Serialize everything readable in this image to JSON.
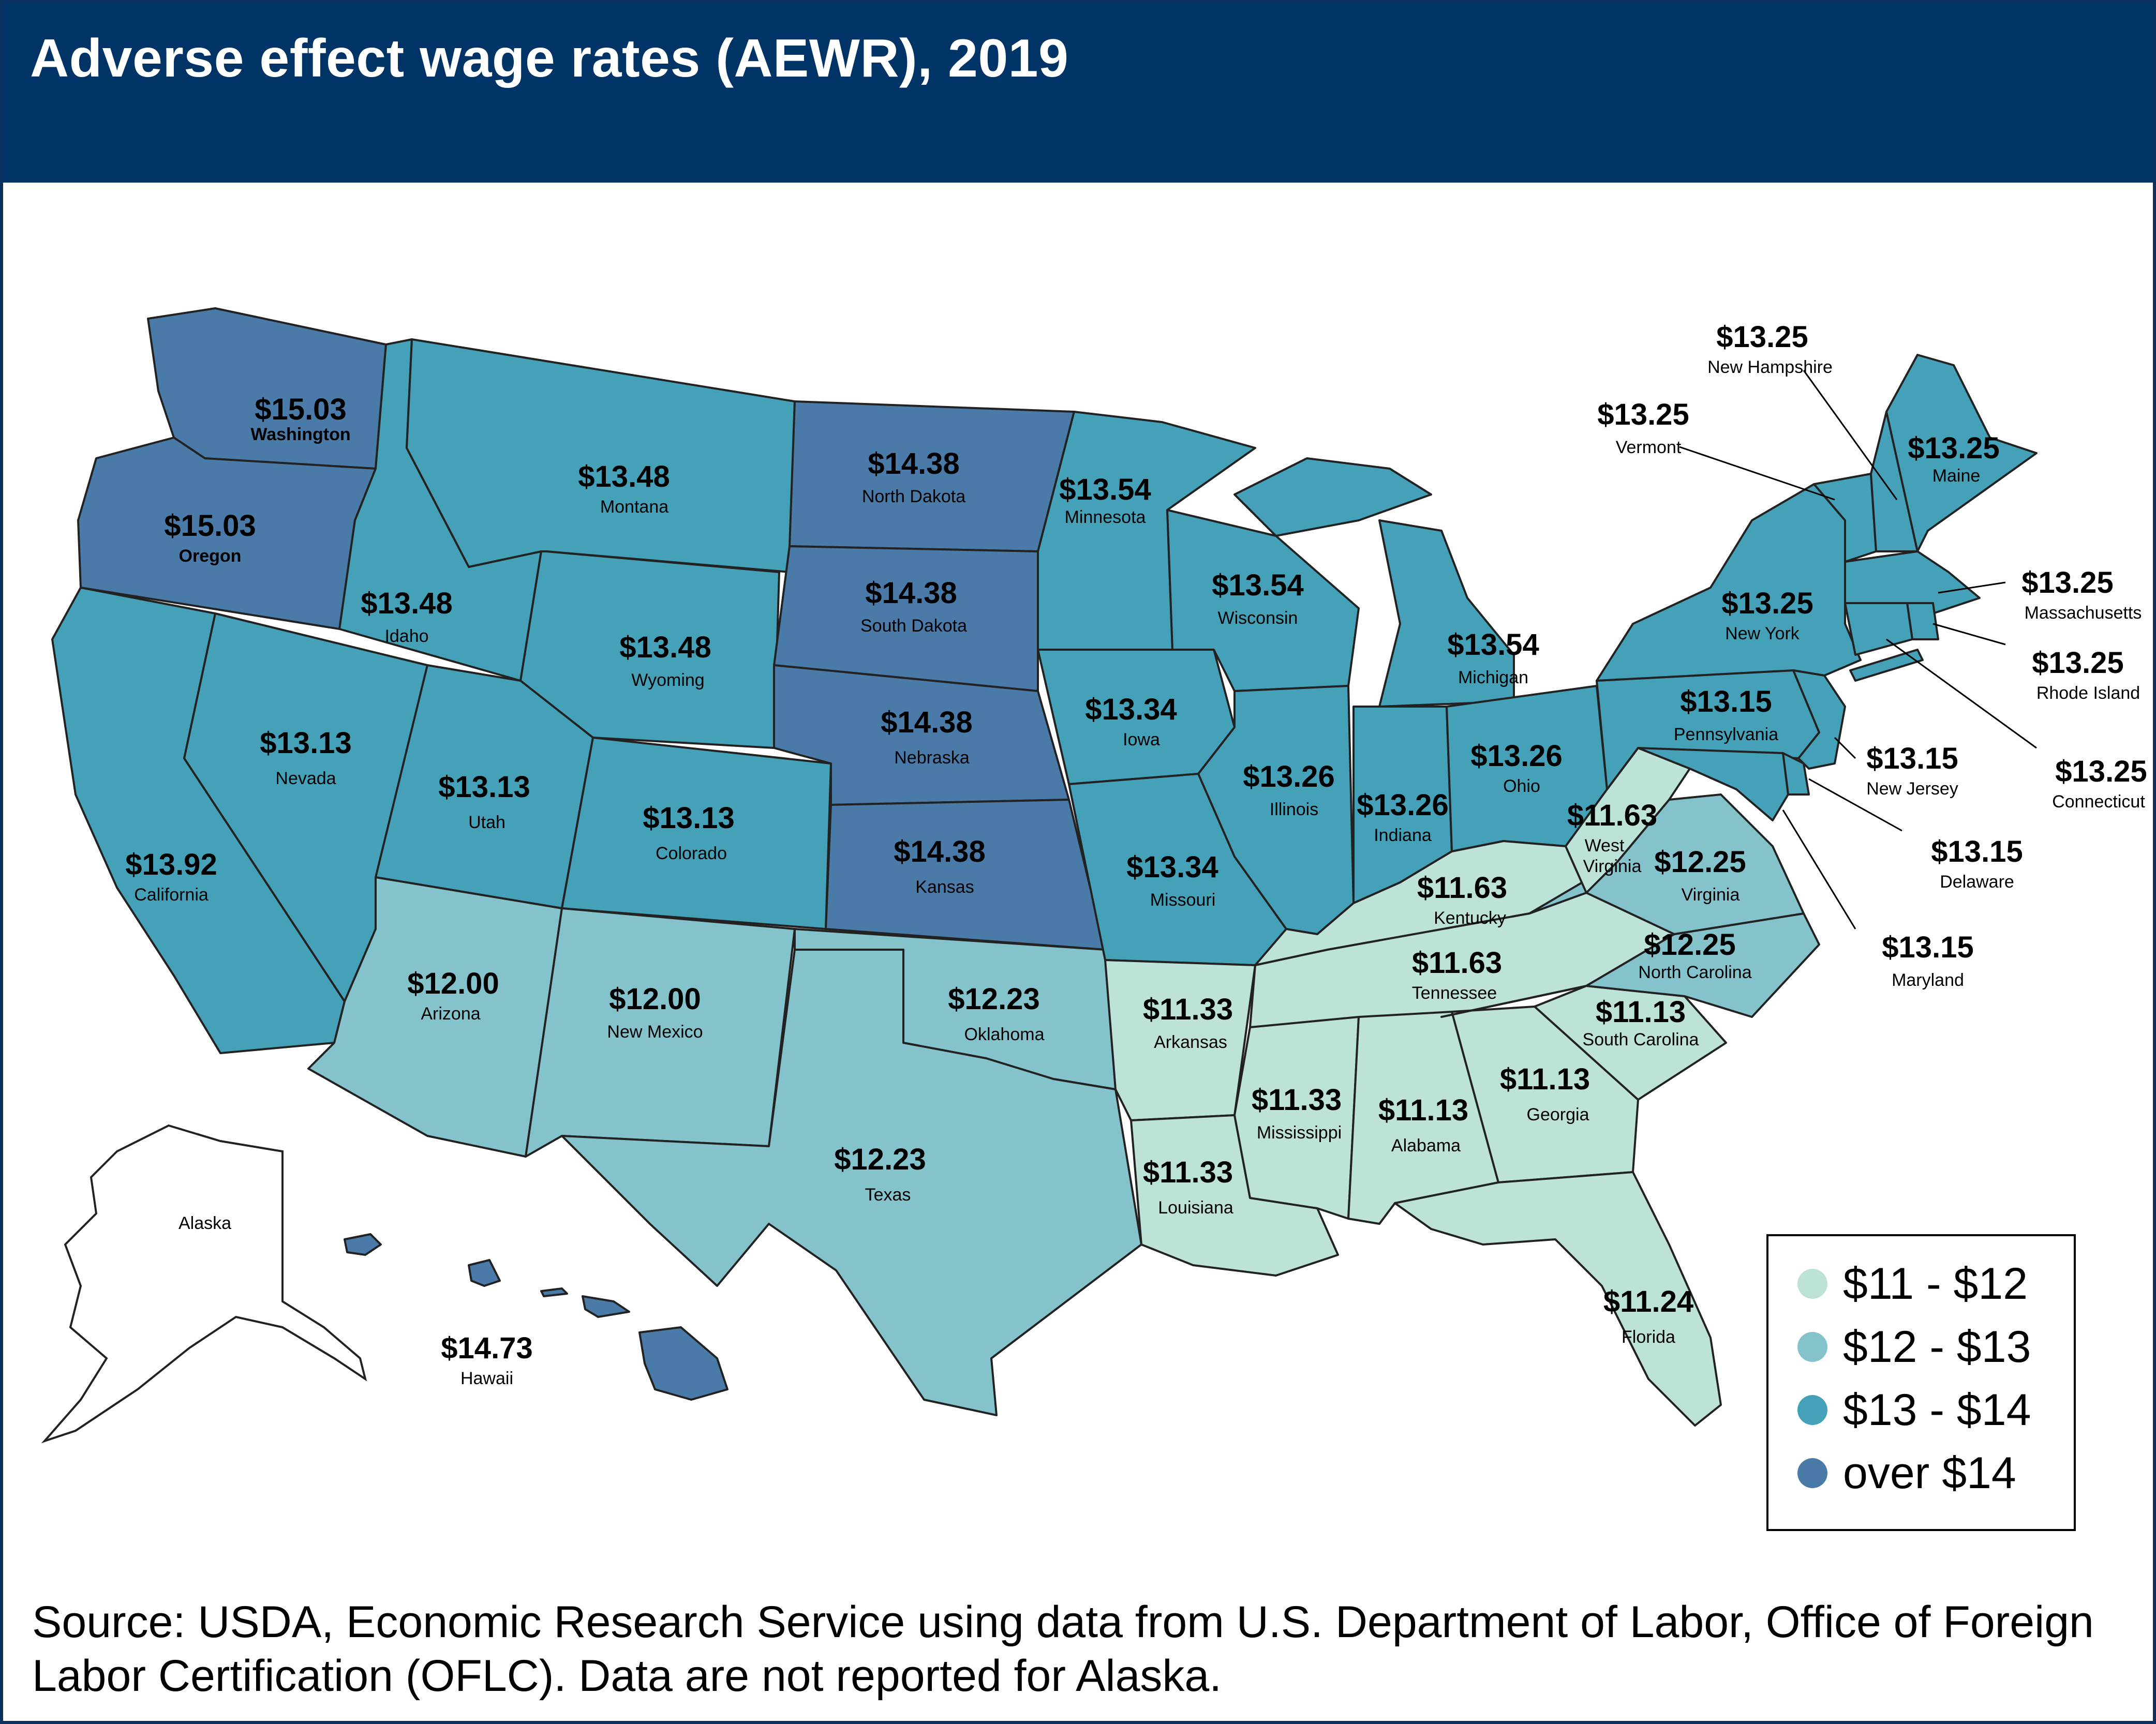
{
  "title": "Adverse effect wage rates (AEWR), 2019",
  "colors": {
    "header_bg": "#003366",
    "bin_11_12": "#bde3d8",
    "bin_12_13": "#85c3cc",
    "bin_13_14": "#45a1b8",
    "bin_over_14": "#4a7aa8"
  },
  "legend": {
    "items": [
      {
        "label": "$11 - $12",
        "color": "#bde3d8"
      },
      {
        "label": "$12 - $13",
        "color": "#85c3cc"
      },
      {
        "label": "$13 - $14",
        "color": "#45a1b8"
      },
      {
        "label": "over $14",
        "color": "#4a7aa8"
      }
    ]
  },
  "states": {
    "washington": {
      "name": "Washington",
      "value": "$15.03"
    },
    "oregon": {
      "name": "Oregon",
      "value": "$15.03"
    },
    "california": {
      "name": "California",
      "value": "$13.92"
    },
    "nevada": {
      "name": "Nevada",
      "value": "$13.13"
    },
    "idaho": {
      "name": "Idaho",
      "value": "$13.48"
    },
    "montana": {
      "name": "Montana",
      "value": "$13.48"
    },
    "wyoming": {
      "name": "Wyoming",
      "value": "$13.48"
    },
    "utah": {
      "name": "Utah",
      "value": "$13.13"
    },
    "colorado": {
      "name": "Colorado",
      "value": "$13.13"
    },
    "arizona": {
      "name": "Arizona",
      "value": "$12.00"
    },
    "new_mexico": {
      "name": "New Mexico",
      "value": "$12.00"
    },
    "north_dakota": {
      "name": "North Dakota",
      "value": "$14.38"
    },
    "south_dakota": {
      "name": "South Dakota",
      "value": "$14.38"
    },
    "nebraska": {
      "name": "Nebraska",
      "value": "$14.38"
    },
    "kansas": {
      "name": "Kansas",
      "value": "$14.38"
    },
    "oklahoma": {
      "name": "Oklahoma",
      "value": "$12.23"
    },
    "texas": {
      "name": "Texas",
      "value": "$12.23"
    },
    "minnesota": {
      "name": "Minnesota",
      "value": "$13.54"
    },
    "iowa": {
      "name": "Iowa",
      "value": "$13.34"
    },
    "missouri": {
      "name": "Missouri",
      "value": "$13.34"
    },
    "arkansas": {
      "name": "Arkansas",
      "value": "$11.33"
    },
    "louisiana": {
      "name": "Louisiana",
      "value": "$11.33"
    },
    "wisconsin": {
      "name": "Wisconsin",
      "value": "$13.54"
    },
    "michigan": {
      "name": "Michigan",
      "value": "$13.54"
    },
    "illinois": {
      "name": "Illinois",
      "value": "$13.26"
    },
    "indiana": {
      "name": "Indiana",
      "value": "$13.26"
    },
    "ohio": {
      "name": "Ohio",
      "value": "$13.26"
    },
    "kentucky": {
      "name": "Kentucky",
      "value": "$11.63"
    },
    "tennessee": {
      "name": "Tennessee",
      "value": "$11.63"
    },
    "mississippi": {
      "name": "Mississippi",
      "value": "$11.33"
    },
    "alabama": {
      "name": "Alabama",
      "value": "$11.13"
    },
    "georgia": {
      "name": "Georgia",
      "value": "$11.13"
    },
    "florida": {
      "name": "Florida",
      "value": "$11.24"
    },
    "south_carolina": {
      "name": "South Carolina",
      "value": "$11.13"
    },
    "north_carolina": {
      "name": "North Carolina",
      "value": "$12.25"
    },
    "virginia": {
      "name": "Virginia",
      "value": "$12.25"
    },
    "west_virginia": {
      "name": "West Virginia",
      "value": "$11.63"
    },
    "pennsylvania": {
      "name": "Pennsylvania",
      "value": "$13.15"
    },
    "new_york": {
      "name": "New York",
      "value": "$13.25"
    },
    "new_jersey": {
      "name": "New Jersey",
      "value": "$13.15"
    },
    "delaware": {
      "name": "Delaware",
      "value": "$13.15"
    },
    "maryland": {
      "name": "Maryland",
      "value": "$13.15"
    },
    "vermont": {
      "name": "Vermont",
      "value": "$13.25"
    },
    "new_hampshire": {
      "name": "New Hampshire",
      "value": "$13.25"
    },
    "maine": {
      "name": "Maine",
      "value": "$13.25"
    },
    "massachusetts": {
      "name": "Massachusetts",
      "value": "$13.25"
    },
    "rhode_island": {
      "name": "Rhode Island",
      "value": "$13.25"
    },
    "connecticut": {
      "name": "Connecticut",
      "value": "$13.25"
    },
    "hawaii": {
      "name": "Hawaii",
      "value": "$14.73"
    },
    "alaska": {
      "name": "Alaska"
    }
  },
  "source": "Source: USDA, Economic Research Service using data from U.S. Department of Labor, Office of Foreign Labor Certification (OFLC). Data are not reported for Alaska."
}
